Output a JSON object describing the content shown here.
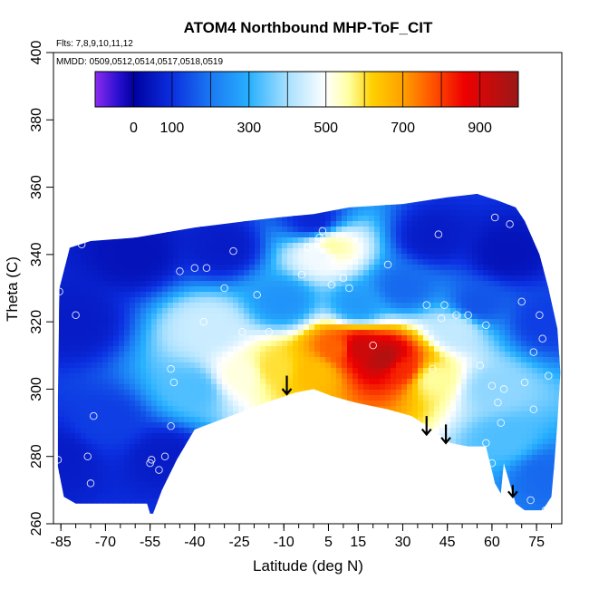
{
  "chart_data": {
    "type": "heatmap",
    "title": "ATOM4 Northbound MHP-ToF_CIT",
    "annotations": [
      "Flts: 7,8,9,10,11,12",
      "MMDD: 0509,0512,0514,0517,0518,0519"
    ],
    "xlabel": "Latitude (deg N)",
    "ylabel": "Theta (C)",
    "xlim": [
      -87.5,
      83.5
    ],
    "ylim": [
      260,
      400
    ],
    "x_ticks": [
      -85,
      -70,
      -55,
      -40,
      -25,
      -10,
      5,
      15,
      30,
      45,
      60,
      75
    ],
    "x_minor_step": 5,
    "y_ticks": [
      260,
      280,
      300,
      320,
      340,
      360,
      380,
      400
    ],
    "colorbar": {
      "range": [
        -100,
        1000
      ],
      "ticks": [
        0,
        100,
        300,
        500,
        700,
        900
      ],
      "stops": [
        {
          "v": -100,
          "c": "#8c2bf0"
        },
        {
          "v": -40,
          "c": "#2a0fd0"
        },
        {
          "v": 0,
          "c": "#0000a0"
        },
        {
          "v": 100,
          "c": "#0b2fe0"
        },
        {
          "v": 200,
          "c": "#1a78f2"
        },
        {
          "v": 300,
          "c": "#28b0ff"
        },
        {
          "v": 400,
          "c": "#a8e0ff"
        },
        {
          "v": 500,
          "c": "#ffffff"
        },
        {
          "v": 560,
          "c": "#ffffa0"
        },
        {
          "v": 620,
          "c": "#ffd000"
        },
        {
          "v": 700,
          "c": "#ffa000"
        },
        {
          "v": 780,
          "c": "#ff5000"
        },
        {
          "v": 860,
          "c": "#ee0000"
        },
        {
          "v": 1000,
          "c": "#9a1818"
        }
      ]
    },
    "field_centers": [
      {
        "lat": 15,
        "theta": 312,
        "value": 920
      },
      {
        "lat": 24,
        "theta": 309,
        "value": 960
      },
      {
        "lat": 8,
        "theta": 312,
        "value": 760
      },
      {
        "lat": 30,
        "theta": 306,
        "value": 820
      },
      {
        "lat": 0,
        "theta": 305,
        "value": 650
      },
      {
        "lat": -12,
        "theta": 306,
        "value": 600
      },
      {
        "lat": -25,
        "theta": 304,
        "value": 520
      },
      {
        "lat": 40,
        "theta": 303,
        "value": 560
      },
      {
        "lat": 48,
        "theta": 318,
        "value": 430
      },
      {
        "lat": -35,
        "theta": 318,
        "value": 440
      },
      {
        "lat": 3,
        "theta": 340,
        "value": 480
      },
      {
        "lat": 6,
        "theta": 342,
        "value": 560
      },
      {
        "lat": 60,
        "theta": 300,
        "value": 380
      },
      {
        "lat": 65,
        "theta": 285,
        "value": 330
      },
      {
        "lat": -10,
        "theta": 326,
        "value": 250
      },
      {
        "lat": 15,
        "theta": 325,
        "value": 260
      },
      {
        "lat": 30,
        "theta": 330,
        "value": 180
      },
      {
        "lat": -40,
        "theta": 300,
        "value": 330
      },
      {
        "lat": -70,
        "theta": 290,
        "value": 120
      },
      {
        "lat": -80,
        "theta": 320,
        "value": 60
      },
      {
        "lat": -60,
        "theta": 340,
        "value": 40
      },
      {
        "lat": -50,
        "theta": 280,
        "value": 60
      },
      {
        "lat": -30,
        "theta": 342,
        "value": 60
      },
      {
        "lat": 0,
        "theta": 350,
        "value": 80
      },
      {
        "lat": 40,
        "theta": 345,
        "value": 60
      },
      {
        "lat": 65,
        "theta": 340,
        "value": 40
      },
      {
        "lat": 78,
        "theta": 320,
        "value": 120
      },
      {
        "lat": 78,
        "theta": 275,
        "value": 180
      },
      {
        "lat": -85,
        "theta": 280,
        "value": 60
      },
      {
        "lat": 55,
        "theta": 325,
        "value": 150
      }
    ],
    "data_region": [
      [
        -86,
        297
      ],
      [
        -85.5,
        330
      ],
      [
        -82,
        342
      ],
      [
        -75,
        344
      ],
      [
        -60,
        345
      ],
      [
        -40,
        348
      ],
      [
        -22,
        350
      ],
      [
        -12,
        351
      ],
      [
        0,
        352
      ],
      [
        12,
        354
      ],
      [
        30,
        355
      ],
      [
        45,
        357
      ],
      [
        55,
        358
      ],
      [
        62,
        356
      ],
      [
        68,
        354
      ],
      [
        71,
        350
      ],
      [
        73,
        346
      ],
      [
        76,
        340
      ],
      [
        79,
        330
      ],
      [
        82,
        318
      ],
      [
        83,
        305
      ],
      [
        82,
        290
      ],
      [
        81,
        278
      ],
      [
        80,
        268
      ],
      [
        77,
        264
      ],
      [
        71,
        264
      ],
      [
        68,
        266
      ],
      [
        64,
        278
      ],
      [
        63,
        269
      ],
      [
        61,
        272
      ],
      [
        58,
        283
      ],
      [
        52,
        283
      ],
      [
        46,
        284
      ],
      [
        40,
        288
      ],
      [
        33,
        292
      ],
      [
        25,
        294
      ],
      [
        14,
        296
      ],
      [
        6,
        298
      ],
      [
        0,
        300
      ],
      [
        -6,
        299
      ],
      [
        -16,
        296
      ],
      [
        -28,
        292
      ],
      [
        -40,
        288
      ],
      [
        -46,
        279
      ],
      [
        -51,
        270
      ],
      [
        -54,
        263
      ],
      [
        -55,
        263
      ],
      [
        -56,
        266
      ],
      [
        -62,
        266
      ],
      [
        -72,
        266
      ],
      [
        -80,
        266
      ],
      [
        -84,
        268
      ],
      [
        -86,
        277
      ],
      [
        -86,
        297
      ]
    ],
    "arrows": [
      {
        "lat": -9,
        "theta": 304,
        "length": 5.5
      },
      {
        "lat": 38,
        "theta": 292,
        "length": 5.5
      },
      {
        "lat": 44.5,
        "theta": 289.5,
        "length": 5.5
      },
      {
        "lat": 67,
        "theta": 271.5,
        "length": 3.5
      }
    ],
    "samples": [
      [
        -86,
        279
      ],
      [
        -85.5,
        329
      ],
      [
        -80,
        322
      ],
      [
        -78,
        343
      ],
      [
        -76,
        280
      ],
      [
        -74,
        292
      ],
      [
        -75,
        272
      ],
      [
        -55,
        278
      ],
      [
        -54.5,
        279
      ],
      [
        -52,
        276
      ],
      [
        -50,
        280
      ],
      [
        -48,
        306
      ],
      [
        -47,
        302
      ],
      [
        -48,
        289
      ],
      [
        -45,
        335
      ],
      [
        -40,
        336
      ],
      [
        -36,
        336
      ],
      [
        -37,
        320
      ],
      [
        -30,
        330
      ],
      [
        -27,
        341
      ],
      [
        -24,
        317
      ],
      [
        -19,
        328
      ],
      [
        -15,
        317
      ],
      [
        -4,
        334
      ],
      [
        -2,
        342
      ],
      [
        2,
        345
      ],
      [
        3,
        347
      ],
      [
        6,
        331
      ],
      [
        9,
        345
      ],
      [
        10,
        333
      ],
      [
        12,
        330
      ],
      [
        20,
        313
      ],
      [
        25,
        337
      ],
      [
        38,
        325
      ],
      [
        40,
        306
      ],
      [
        42,
        346
      ],
      [
        43,
        321
      ],
      [
        44,
        325
      ],
      [
        48,
        322
      ],
      [
        52,
        322
      ],
      [
        56,
        307
      ],
      [
        58,
        319
      ],
      [
        58,
        284
      ],
      [
        60,
        301
      ],
      [
        60,
        278
      ],
      [
        61,
        351
      ],
      [
        62,
        296
      ],
      [
        63,
        290
      ],
      [
        64,
        300
      ],
      [
        66,
        349
      ],
      [
        70,
        326
      ],
      [
        71,
        302
      ],
      [
        72,
        354
      ],
      [
        73,
        267
      ],
      [
        74,
        294
      ],
      [
        74,
        311
      ],
      [
        76,
        322
      ],
      [
        77,
        315
      ],
      [
        78,
        264
      ],
      [
        79,
        304
      ]
    ]
  }
}
